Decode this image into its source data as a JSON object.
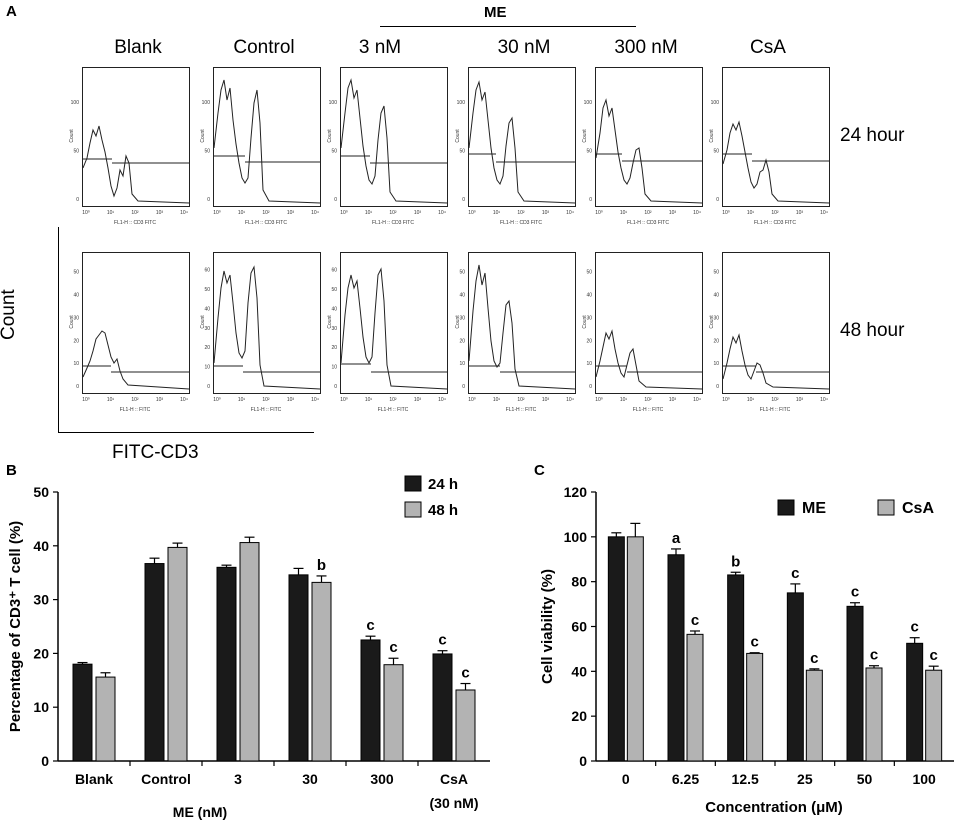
{
  "panel_a": {
    "letter": "A",
    "group_label": "ME",
    "columns": [
      "Blank",
      "Control",
      "3 nM",
      "30 nM",
      "300 nM",
      "CsA"
    ],
    "rows": [
      "24 hour",
      "48 hour"
    ],
    "y_axis_label": "Count",
    "x_axis_label": "FITC-CD3",
    "mini_ylabel": "Count",
    "mini_xlabel_24": "FL1-H :: CD3 FITC",
    "mini_xlabel_48": "FL1-H :: FITC",
    "ticks_24": [
      "0",
      "50",
      "100"
    ],
    "ticks_48_a": [
      "0",
      "10",
      "20",
      "30",
      "40",
      "50"
    ],
    "ticks_48_b": [
      "0",
      "10",
      "20",
      "30",
      "40",
      "50",
      "60"
    ],
    "x_ticks": [
      "10⁰",
      "10¹",
      "10²",
      "10³",
      "10⁴"
    ]
  },
  "chart_data": [
    {
      "panel": "B",
      "type": "bar",
      "ylabel": "Percentage of CD3⁺ T cell (%)",
      "ylim": [
        0,
        50
      ],
      "yticks": [
        0,
        10,
        20,
        30,
        40,
        50
      ],
      "categories": [
        "Blank",
        "Control",
        "3",
        "30",
        "300",
        "CsA"
      ],
      "category_sublabels": [
        "",
        "",
        "",
        "",
        "",
        "(30 nM)"
      ],
      "xgroup_label": "ME  (nM)",
      "legend_position": "top-right",
      "series": [
        {
          "name": "24 h",
          "color": "#1a1a1a",
          "values": [
            18.0,
            36.7,
            36.0,
            34.6,
            22.5,
            19.9
          ],
          "errors": [
            0.3,
            1.0,
            0.4,
            1.2,
            0.7,
            0.6
          ],
          "labels": [
            "",
            "",
            "",
            "",
            "c",
            "c"
          ]
        },
        {
          "name": "48 h",
          "color": "#b3b3b3",
          "values": [
            15.6,
            39.7,
            40.6,
            33.2,
            17.9,
            13.2
          ],
          "errors": [
            0.8,
            0.8,
            1.0,
            1.2,
            1.2,
            1.2
          ],
          "labels": [
            "",
            "",
            "",
            "b",
            "c",
            "c"
          ]
        }
      ]
    },
    {
      "panel": "C",
      "type": "bar",
      "ylabel": "Cell viability (%)",
      "xlabel": "Concentration (μM)",
      "ylim": [
        0,
        120
      ],
      "yticks": [
        0,
        20,
        40,
        60,
        80,
        100,
        120
      ],
      "categories": [
        "0",
        "6.25",
        "12.5",
        "25",
        "50",
        "100"
      ],
      "legend_position": "top-right",
      "series": [
        {
          "name": "ME",
          "color": "#1a1a1a",
          "values": [
            100,
            92,
            83,
            75,
            69,
            52.5
          ],
          "errors": [
            1.8,
            2.6,
            1.2,
            4.0,
            1.6,
            2.5
          ],
          "labels": [
            "",
            "a",
            "b",
            "c",
            "c",
            "c"
          ]
        },
        {
          "name": "CsA",
          "color": "#b3b3b3",
          "values": [
            100,
            56.5,
            48,
            40.5,
            41.5,
            40.5
          ],
          "errors": [
            6.0,
            1.5,
            0.3,
            0.6,
            1.0,
            1.8
          ],
          "labels": [
            "",
            "c",
            "c",
            "c",
            "c",
            "c"
          ]
        }
      ]
    }
  ]
}
